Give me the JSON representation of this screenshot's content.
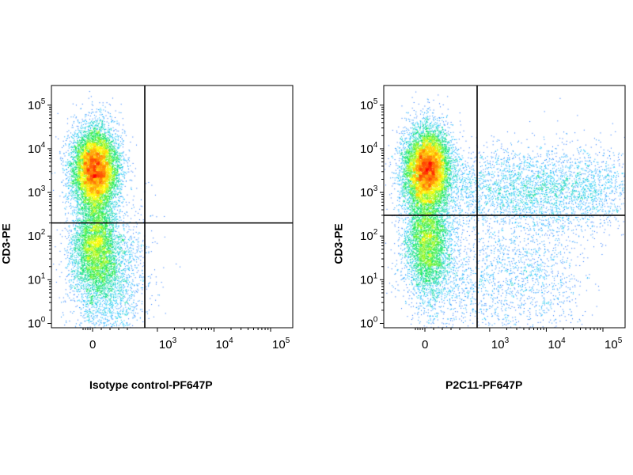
{
  "figure": {
    "panels": [
      {
        "id": "left",
        "xlabel": "Isotype control-PF647P",
        "ylabel": "CD3-PE"
      },
      {
        "id": "right",
        "xlabel": "P2C11-PF647P",
        "ylabel": "CD3-PE"
      }
    ]
  },
  "chart_data": [
    {
      "type": "scatter",
      "plot_style": "flow cytometry density dot plot",
      "title": "",
      "xlabel": "Isotype control-PF647P",
      "ylabel": "CD3-PE",
      "xscale": "biexponential",
      "yscale": "log",
      "x_ticks": [
        {
          "value": 0,
          "label": "0"
        },
        {
          "value": 1000,
          "label": "10",
          "exp": "3"
        },
        {
          "value": 10000,
          "label": "10",
          "exp": "4"
        },
        {
          "value": 100000,
          "label": "10",
          "exp": "5"
        }
      ],
      "y_ticks": [
        {
          "value": 1,
          "label": "10",
          "exp": "0"
        },
        {
          "value": 10,
          "label": "10",
          "exp": "1"
        },
        {
          "value": 100,
          "label": "10",
          "exp": "2"
        },
        {
          "value": 1000,
          "label": "10",
          "exp": "3"
        },
        {
          "value": 10000,
          "label": "10",
          "exp": "4"
        },
        {
          "value": 100000,
          "label": "10",
          "exp": "5"
        }
      ],
      "quadrant_gate": {
        "x": 600,
        "y": 200
      },
      "populations": [
        {
          "name": "CD3 high, negative",
          "x_center": 0,
          "y_center": 3500,
          "density": "high"
        },
        {
          "name": "CD3 low, negative",
          "x_center": 0,
          "y_center": 60,
          "density": "medium"
        }
      ],
      "colormap": [
        "#1a1aff",
        "#00bfff",
        "#00e64d",
        "#ffff00",
        "#ff8c00",
        "#ff0000"
      ]
    },
    {
      "type": "scatter",
      "plot_style": "flow cytometry density dot plot",
      "title": "",
      "xlabel": "P2C11-PF647P",
      "ylabel": "CD3-PE",
      "xscale": "biexponential",
      "yscale": "log",
      "x_ticks": [
        {
          "value": 0,
          "label": "0"
        },
        {
          "value": 1000,
          "label": "10",
          "exp": "3"
        },
        {
          "value": 10000,
          "label": "10",
          "exp": "4"
        },
        {
          "value": 100000,
          "label": "10",
          "exp": "5"
        }
      ],
      "y_ticks": [
        {
          "value": 1,
          "label": "10",
          "exp": "0"
        },
        {
          "value": 10,
          "label": "10",
          "exp": "1"
        },
        {
          "value": 100,
          "label": "10",
          "exp": "2"
        },
        {
          "value": 1000,
          "label": "10",
          "exp": "3"
        },
        {
          "value": 10000,
          "label": "10",
          "exp": "4"
        },
        {
          "value": 100000,
          "label": "10",
          "exp": "5"
        }
      ],
      "quadrant_gate": {
        "x": 600,
        "y": 300
      },
      "populations": [
        {
          "name": "CD3 high, negative",
          "x_center": 0,
          "y_center": 3500,
          "density": "high"
        },
        {
          "name": "CD3 high, P2C11 positive",
          "x_center": 8000,
          "y_center": 1200,
          "density": "medium-low"
        },
        {
          "name": "CD3 low, negative",
          "x_center": 0,
          "y_center": 70,
          "density": "medium"
        }
      ],
      "colormap": [
        "#1a1aff",
        "#00bfff",
        "#00e64d",
        "#ffff00",
        "#ff8c00",
        "#ff0000"
      ]
    }
  ]
}
